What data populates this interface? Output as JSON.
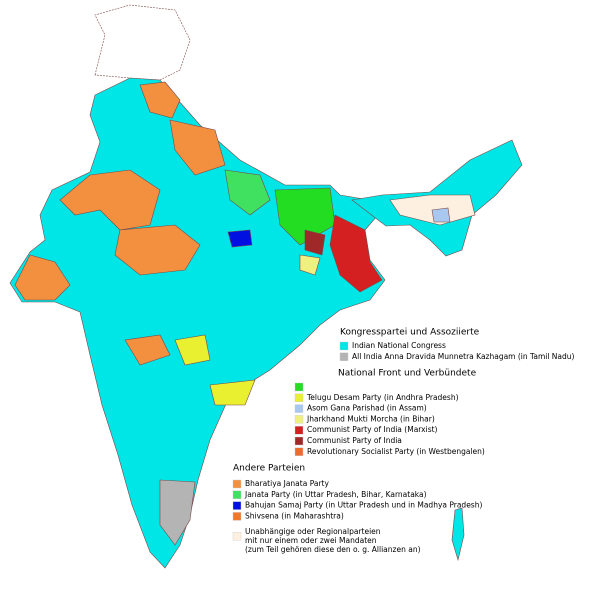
{
  "legend": {
    "groups": [
      {
        "title": "Kongresspartei und Assoziierte",
        "items": [
          {
            "label": "Indian National Congress",
            "color": "#00e5e5"
          },
          {
            "label": "All India Anna Dravida Munnetra Kazhagam (in Tamil Nadu)",
            "color": "#b4b4b4"
          }
        ]
      },
      {
        "title": "National Front und Verbündete",
        "items": [
          {
            "color": "#22dd22"
          },
          {
            "label": "Telugu Desam Party (in Andhra Pradesh)",
            "color": "#e8f030"
          },
          {
            "label": "Asom Gana Parishad (in Assam)",
            "color": "#a8c8f0"
          },
          {
            "label": "Jharkhand Mukti Morcha (in Bihar)",
            "color": "#f0f080"
          },
          {
            "label": "Communist Party of India (Marxist)",
            "color": "#d42020"
          },
          {
            "label": "Communist Party of India",
            "color": "#a02828"
          },
          {
            "label": "Revolutionary Socialist Party (in Westbengalen)",
            "color": "#f06a30"
          }
        ]
      },
      {
        "title": "Andere Parteien",
        "items": [
          {
            "label": "Bharatiya Janata Party",
            "color": "#f29040"
          },
          {
            "label": "Janata Party (in Uttar Pradesh, Bihar, Karnataka)",
            "color": "#40e060"
          },
          {
            "label": "Bahujan Samaj Party (in Uttar Pradesh und in Madhya Pradesh)",
            "color": "#0010e0"
          },
          {
            "label": "Shivsena (in Maharashtra)",
            "color": "#f07828"
          },
          {
            "lines": [
              "Unabhängige oder Regionalparteien",
              "mit nur einem oder zwei Mandaten",
              "(zum Teil gehören diese den o. g. Allianzen an)"
            ],
            "color": "#fdf0e0"
          }
        ]
      }
    ]
  }
}
